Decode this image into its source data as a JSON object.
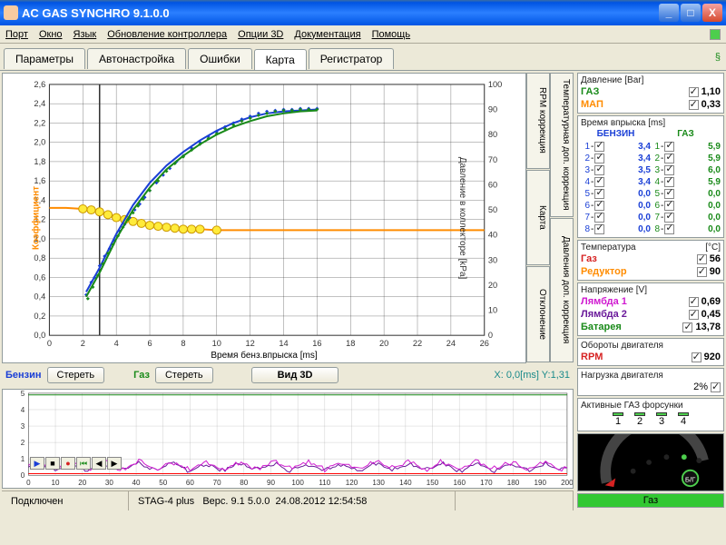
{
  "window": {
    "title": "AC GAS SYNCHRO  9.1.0.0"
  },
  "menu": [
    "Порт",
    "Окно",
    "Язык",
    "Обновление контроллера",
    "Опции 3D",
    "Документация",
    "Помощь"
  ],
  "tabs": [
    "Параметры",
    "Автонастройка",
    "Ошибки",
    "Карта",
    "Регистратор"
  ],
  "active_tab": 3,
  "vtabs_top": [
    "RPM коррекция",
    "Карта"
  ],
  "vtabs_bot": [
    "Отклонение"
  ],
  "vtabs_right_top": [
    "Температурная доп. коррекция"
  ],
  "vtabs_right_bot": [
    "Давления доп. коррекция"
  ],
  "chart": {
    "type": "scatter+line",
    "background": "#ffffff",
    "grid_color": "#333333",
    "xlim": [
      0,
      26
    ],
    "xtick_step": 2,
    "ylim_left": [
      0,
      2.6
    ],
    "ytick_left_step": 0.2,
    "ylim_right": [
      0,
      100
    ],
    "ytick_right_step": 10,
    "xlabel": "Время бенз.впрыска [ms]",
    "ylabel_left": "Коэффициент",
    "ylabel_right": "Давление в коллекторе [kPa]",
    "vertical_marker_x": 3.0,
    "orange_line": {
      "color": "#ff8c00",
      "width": 2,
      "points_x": [
        0,
        1,
        2,
        2.5,
        3,
        3.5,
        4,
        4.5,
        5,
        5.5,
        6,
        6.5,
        7,
        7.5,
        8,
        8.5,
        9,
        10,
        12,
        16,
        20,
        26
      ],
      "points_y": [
        1.32,
        1.32,
        1.31,
        1.3,
        1.28,
        1.25,
        1.22,
        1.2,
        1.18,
        1.16,
        1.14,
        1.13,
        1.12,
        1.11,
        1.1,
        1.1,
        1.1,
        1.09,
        1.09,
        1.09,
        1.09,
        1.09
      ],
      "marker": "circle",
      "marker_size": 7,
      "marker_fill": "#ffeb3b",
      "marker_stroke": "#cc9900",
      "marker_x": [
        2,
        2.5,
        3,
        3.5,
        4,
        4.5,
        5,
        5.5,
        6,
        6.5,
        7,
        7.5,
        8,
        8.5,
        9,
        10
      ]
    },
    "blue_series": {
      "color": "#1a3fd6",
      "width": 2,
      "curve_x": [
        2.2,
        3,
        4,
        5,
        6,
        7,
        8,
        9,
        10,
        11,
        12,
        13,
        14,
        15,
        16
      ],
      "curve_y": [
        0.45,
        0.7,
        1.05,
        1.35,
        1.58,
        1.76,
        1.9,
        2.02,
        2.12,
        2.2,
        2.26,
        2.3,
        2.32,
        2.33,
        2.34
      ],
      "scatter_x": [
        2.2,
        2.5,
        2.7,
        3.0,
        3.3,
        3.6,
        3.9,
        4.2,
        4.5,
        4.8,
        5.1,
        5.4,
        5.7,
        6.0,
        6.4,
        6.8,
        7.2,
        7.6,
        8.0,
        8.5,
        9.0,
        9.5,
        10,
        10.5,
        11,
        11.5,
        12,
        12.5,
        13,
        13.5,
        14,
        14.5,
        15,
        15.5,
        16
      ],
      "scatter_y": [
        0.42,
        0.55,
        0.6,
        0.72,
        0.82,
        0.9,
        0.98,
        1.08,
        1.15,
        1.22,
        1.3,
        1.36,
        1.43,
        1.5,
        1.58,
        1.66,
        1.73,
        1.8,
        1.86,
        1.94,
        2.0,
        2.06,
        2.11,
        2.16,
        2.2,
        2.24,
        2.27,
        2.3,
        2.32,
        2.33,
        2.34,
        2.34,
        2.35,
        2.35,
        2.35
      ],
      "marker": "diamond",
      "marker_size": 4
    },
    "green_series": {
      "color": "#198a19",
      "width": 2,
      "curve_x": [
        2.2,
        3,
        4,
        5,
        6,
        7,
        8,
        9,
        10,
        11,
        12,
        13,
        14,
        15,
        16
      ],
      "curve_y": [
        0.4,
        0.65,
        1.0,
        1.3,
        1.53,
        1.72,
        1.86,
        1.98,
        2.08,
        2.16,
        2.22,
        2.27,
        2.3,
        2.32,
        2.33
      ],
      "scatter_x": [
        2.3,
        2.6,
        2.9,
        3.2,
        3.5,
        3.8,
        4.1,
        4.4,
        4.7,
        5.0,
        5.3,
        5.6,
        6.0,
        6.5,
        7.0,
        7.5,
        8.0,
        8.5,
        9.0,
        9.5,
        10,
        10.5,
        11,
        11.5,
        12,
        12.5,
        13,
        13.5,
        14,
        14.5,
        15,
        15.5,
        16
      ],
      "scatter_y": [
        0.38,
        0.5,
        0.62,
        0.74,
        0.85,
        0.94,
        1.03,
        1.12,
        1.2,
        1.27,
        1.34,
        1.41,
        1.5,
        1.6,
        1.7,
        1.78,
        1.85,
        1.92,
        1.98,
        2.04,
        2.09,
        2.14,
        2.18,
        2.22,
        2.25,
        2.28,
        2.3,
        2.32,
        2.33,
        2.33,
        2.34,
        2.34,
        2.34
      ],
      "marker": "diamond",
      "marker_size": 4
    }
  },
  "chart_controls": {
    "petrol_label": "Бензин",
    "petrol_color": "#1a3fd6",
    "gas_label": "Газ",
    "gas_color": "#198a19",
    "erase_label": "Стереть",
    "view3d_label": "Вид 3D",
    "cursor_readout_x_label": "X:",
    "cursor_readout_x": "0,0[ms]",
    "cursor_readout_y_label": "Y:",
    "cursor_readout_y": "1,31",
    "readout_color": "#1a8a8a"
  },
  "strip_chart": {
    "background": "#ffffff",
    "xlim": [
      0,
      200
    ],
    "xtick_step": 10,
    "ylim": [
      0,
      5
    ],
    "ytick_step": 1,
    "grid_color": "#888888",
    "traces": [
      {
        "color": "#198a19",
        "y_const": 4.9
      },
      {
        "color": "#ff0000",
        "y_const": 0.1
      },
      {
        "color": "#6a1a9a",
        "wave": true,
        "y_base": 0.5,
        "amp": 0.35
      },
      {
        "color": "#d01ad0",
        "wave": true,
        "y_base": 0.6,
        "amp": 0.4
      }
    ]
  },
  "status": {
    "connected": "Подключен",
    "device": "STAG-4 plus",
    "version": "Верс. 9.1  5.0.0",
    "date": "24.08.2012 12:54:58"
  },
  "right": {
    "pressure": {
      "title": "Давление [Bar]",
      "gas_label": "ГАЗ",
      "gas_val": "1,10",
      "gas_color": "#198a19",
      "map_label": "МАП",
      "map_val": "0,33",
      "map_color": "#ff8c00"
    },
    "inj_time": {
      "title": "Время впрыска [ms]",
      "petrol_header": "БЕНЗИН",
      "gas_header": "ГАЗ",
      "petrol_color": "#1a3fd6",
      "gas_color": "#198a19",
      "rows": [
        {
          "n": 1,
          "p": "3,4",
          "g": "5,9"
        },
        {
          "n": 2,
          "p": "3,4",
          "g": "5,9"
        },
        {
          "n": 3,
          "p": "3,5",
          "g": "6,0"
        },
        {
          "n": 4,
          "p": "3,4",
          "g": "5,9"
        },
        {
          "n": 5,
          "p": "0,0",
          "g": "0,0"
        },
        {
          "n": 6,
          "p": "0,0",
          "g": "0,0"
        },
        {
          "n": 7,
          "p": "0,0",
          "g": "0,0"
        },
        {
          "n": 8,
          "p": "0,0",
          "g": "0,0"
        }
      ]
    },
    "temperature": {
      "title": "Температура",
      "unit": "[°C]",
      "gas_label": "Газ",
      "gas_val": "56",
      "gas_color": "#d62222",
      "red_label": "Редуктор",
      "red_val": "90",
      "red_color": "#ff8c00"
    },
    "voltage": {
      "title": "Напряжение [V]",
      "l1_label": "Лямбда 1",
      "l1_val": "0,69",
      "l1_color": "#d01ad0",
      "l2_label": "Лямбда 2",
      "l2_val": "0,45",
      "l2_color": "#6a1a9a",
      "bat_label": "Батарея",
      "bat_val": "13,78",
      "bat_color": "#198a19"
    },
    "rpm": {
      "title": "Обороты двигателя",
      "label": "RPM",
      "val": "920",
      "color": "#d62222"
    },
    "load": {
      "title": "Нагрузка двигателя",
      "val": "2%"
    },
    "injectors": {
      "title": "Активные ГАЗ форсунки",
      "count": 4
    },
    "gas_indicator": "Газ"
  }
}
